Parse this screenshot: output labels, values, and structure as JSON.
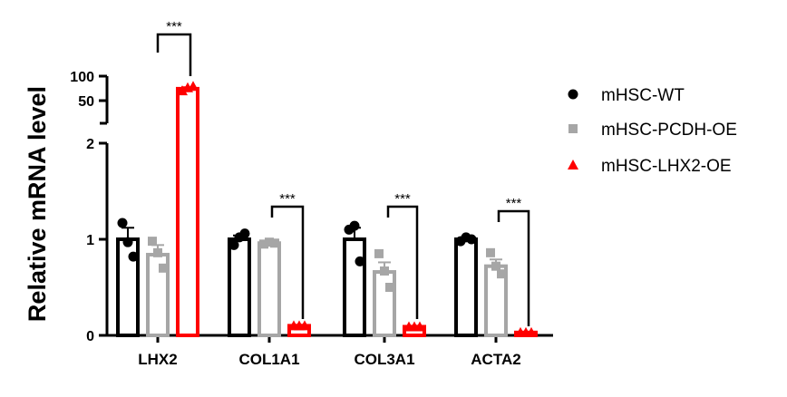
{
  "chart_data": {
    "type": "bar",
    "ylabel": "Relative mRNA level",
    "xlabel": "",
    "title": "",
    "axis": "broken",
    "yticks_lower": [
      "0",
      "1",
      "2"
    ],
    "yticks_upper": [
      "50",
      "100"
    ],
    "categories": [
      "LHX2",
      "COL1A1",
      "COL3A1",
      "ACTA2"
    ],
    "series": [
      {
        "name": "mHSC-WT",
        "color": "#000000",
        "marker": "circle",
        "values": [
          1.0,
          1.0,
          1.0,
          1.0
        ],
        "errors": [
          0.12,
          0.04,
          0.12,
          0.02
        ],
        "points": [
          [
            1.17,
            0.97,
            0.82
          ],
          [
            0.94,
            1.02,
            1.06
          ],
          [
            1.1,
            1.14,
            0.77
          ],
          [
            0.98,
            1.02,
            1.0
          ]
        ]
      },
      {
        "name": "mHSC-PCDH-OE",
        "color": "#a6a6a6",
        "marker": "square",
        "values": [
          0.84,
          0.96,
          0.66,
          0.72
        ],
        "errors": [
          0.1,
          0.02,
          0.1,
          0.07
        ],
        "points": [
          [
            0.98,
            0.86,
            0.7
          ],
          [
            0.95,
            0.97,
            0.96
          ],
          [
            0.85,
            0.67,
            0.5
          ],
          [
            0.86,
            0.72,
            0.64
          ]
        ]
      },
      {
        "name": "mHSC-LHX2-OE",
        "color": "#ff0000",
        "marker": "triangle",
        "values": [
          70,
          0.1,
          0.09,
          0.03
        ],
        "errors": [
          3,
          0.01,
          0.01,
          0.005
        ],
        "points": [
          [
            66,
            72,
            75
          ],
          [
            0.1,
            0.1,
            0.1
          ],
          [
            0.09,
            0.09,
            0.09
          ],
          [
            0.03,
            0.03,
            0.03
          ]
        ]
      }
    ],
    "significance": [
      {
        "category": "LHX2",
        "label": "***"
      },
      {
        "category": "COL1A1",
        "label": "***"
      },
      {
        "category": "COL3A1",
        "label": "***"
      },
      {
        "category": "ACTA2",
        "label": "***"
      }
    ],
    "legend": "right"
  }
}
